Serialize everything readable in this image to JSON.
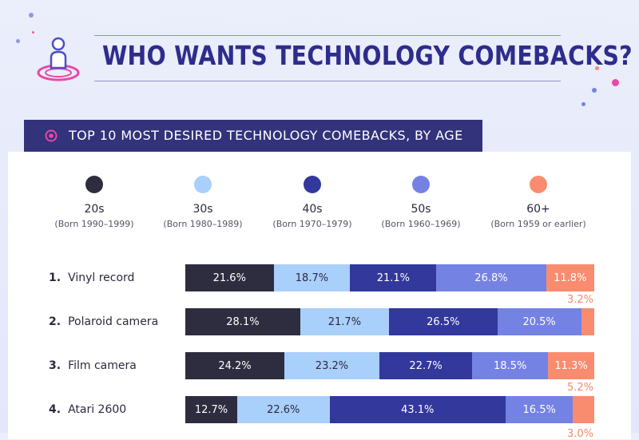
{
  "title": "WHO WANTS TECHNOLOGY COMEBACKS?",
  "section_heading": "TOP 10 MOST DESIRED TECHNOLOGY COMEBACKS, BY AGE",
  "colors": {
    "20s": "#2d2d3f",
    "30s": "#a9cffb",
    "40s": "#32389c",
    "50s": "#7482e4",
    "60+": "#f98c6f",
    "title": "#2e2c8c",
    "section_bar": "#32337a"
  },
  "legend": [
    {
      "label": "20s",
      "sub": "(Born 1990–1999)"
    },
    {
      "label": "30s",
      "sub": "(Born 1980–1989)"
    },
    {
      "label": "40s",
      "sub": "(Born 1970–1979)"
    },
    {
      "label": "50s",
      "sub": "(Born 1960–1969)"
    },
    {
      "label": "60+",
      "sub": "(Born 1959 or earlier)"
    }
  ],
  "chart_data": {
    "type": "bar",
    "orientation": "horizontal",
    "stacked": true,
    "title": "TOP 10 MOST DESIRED TECHNOLOGY COMEBACKS, BY AGE",
    "categories": [
      "Vinyl record",
      "Polaroid camera",
      "Film camera",
      "Atari 2600"
    ],
    "ranks": [
      "1.",
      "2.",
      "3.",
      "4."
    ],
    "series": [
      {
        "name": "20s",
        "values": [
          21.6,
          28.1,
          24.2,
          12.7
        ]
      },
      {
        "name": "30s",
        "values": [
          18.7,
          21.7,
          23.2,
          22.6
        ]
      },
      {
        "name": "40s",
        "values": [
          21.1,
          26.5,
          22.7,
          43.1
        ]
      },
      {
        "name": "50s",
        "values": [
          26.8,
          20.5,
          18.5,
          16.5
        ]
      },
      {
        "name": "60+",
        "values": [
          11.8,
          3.2,
          11.3,
          5.2
        ]
      }
    ],
    "labels": [
      [
        "21.6%",
        "18.7%",
        "21.1%",
        "26.8%",
        "11.8%"
      ],
      [
        "28.1%",
        "21.7%",
        "26.5%",
        "20.5%",
        "3.2%"
      ],
      [
        "24.2%",
        "23.2%",
        "22.7%",
        "18.5%",
        "11.3%"
      ],
      [
        "12.7%",
        "22.6%",
        "43.1%",
        "16.5%",
        "5.2%"
      ]
    ],
    "partial_label": "3.0%",
    "xlim": [
      0,
      100
    ],
    "legend_position": "top"
  }
}
